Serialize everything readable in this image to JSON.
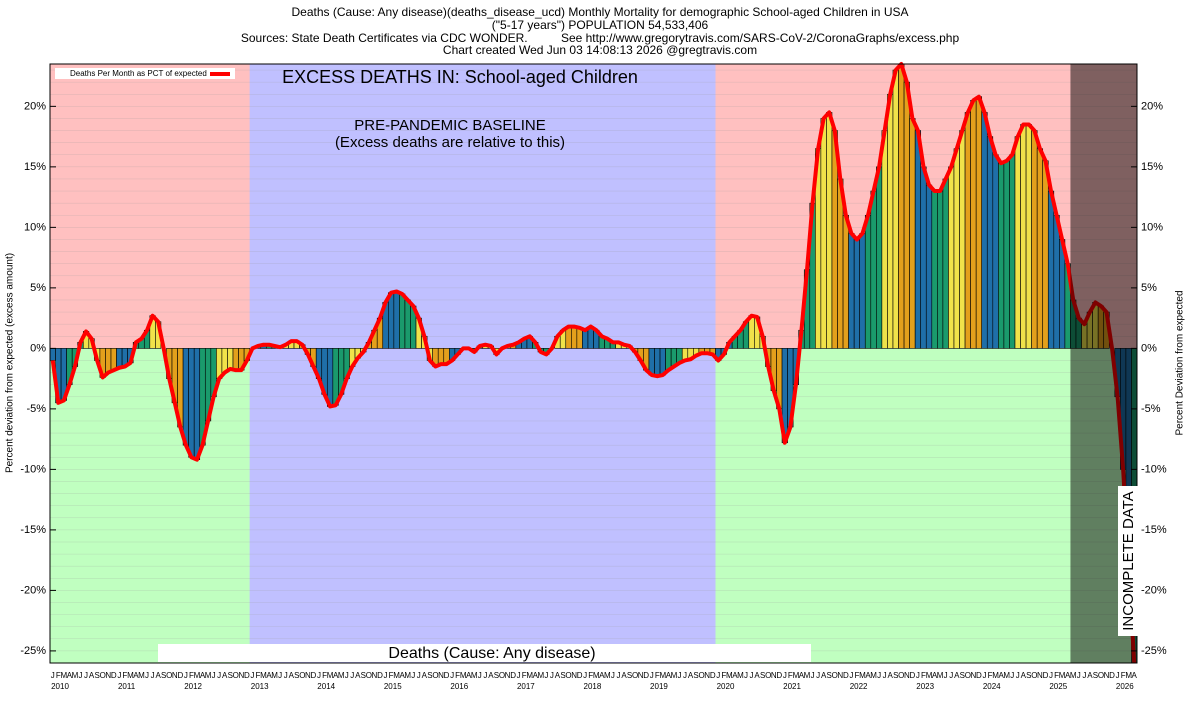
{
  "chart_data": {
    "type": "bar-line",
    "title_lines": [
      "Deaths (Cause: Any disease)(deaths_disease_ucd) Monthly Mortality for demographic School-aged Children in USA",
      "(\"5-17 years\") POPULATION 54,533,406",
      "Sources: State Death Certificates via CDC WONDER.          See http://www.gregorytravis.com/SARS-CoV-2/CoronaGraphs/excess.php",
      "Chart created Wed Jun 03 14:08:13 2026 @gregtravis.com"
    ],
    "ylabel": "Percent deviation from expected (excess amount)",
    "y2label": "Percent Deviation from expected",
    "annotations": [
      "EXCESS DEATHS IN: School-aged Children",
      "PRE-PANDEMIC BASELINE",
      "(Excess deaths are relative to this)",
      "Deaths (Cause: Any disease)",
      "INCOMPLETE DATA"
    ],
    "legend": "Deaths Per Month as PCT of expected",
    "line_color": "#ff0000",
    "month_colors": [
      "#1f6fa8",
      "#1f6fa8",
      "#1f6fa8",
      "#1a9a6c",
      "#1a9a6c",
      "#1a9a6c",
      "#f0e24a",
      "#f0e24a",
      "#f0e24a",
      "#e3a01c",
      "#e3a01c",
      "#e3a01c"
    ],
    "month_letters": [
      "J",
      "F",
      "M",
      "A",
      "M",
      "J",
      "J",
      "A",
      "S",
      "O",
      "N",
      "D"
    ],
    "years": [
      "2010",
      "2011",
      "2012",
      "2013",
      "2014",
      "2015",
      "2016",
      "2017",
      "2018",
      "2019",
      "2020",
      "2021",
      "2022",
      "2023",
      "2024",
      "2025",
      "2026"
    ],
    "baseline": [
      "2013-01",
      "2019-12"
    ],
    "incomplete_from": "2025-05",
    "ylim": [
      -26,
      23.5
    ],
    "yticks": [
      {
        "value": -25,
        "label": "-25%"
      },
      {
        "value": -20,
        "label": "-20%"
      },
      {
        "value": -15,
        "label": "-15%"
      },
      {
        "value": -10,
        "label": "-10%"
      },
      {
        "value": -5,
        "label": "-5%"
      },
      {
        "value": 0,
        "label": "0%"
      },
      {
        "value": 5,
        "label": "5%"
      },
      {
        "value": 10,
        "label": "10%"
      },
      {
        "value": 15,
        "label": "15%"
      },
      {
        "value": 20,
        "label": "20%"
      }
    ],
    "x": [
      "2010-01",
      "2010-02",
      "2010-03",
      "2010-04",
      "2010-05",
      "2010-06",
      "2010-07",
      "2010-08",
      "2010-09",
      "2010-10",
      "2010-11",
      "2010-12",
      "2011-01",
      "2011-02",
      "2011-03",
      "2011-04",
      "2011-05",
      "2011-06",
      "2011-07",
      "2011-08",
      "2011-09",
      "2011-10",
      "2011-11",
      "2011-12",
      "2012-01",
      "2012-02",
      "2012-03",
      "2012-04",
      "2012-05",
      "2012-06",
      "2012-07",
      "2012-08",
      "2012-09",
      "2012-10",
      "2012-11",
      "2012-12",
      "2013-01",
      "2013-02",
      "2013-03",
      "2013-04",
      "2013-05",
      "2013-06",
      "2013-07",
      "2013-08",
      "2013-09",
      "2013-10",
      "2013-11",
      "2013-12",
      "2014-01",
      "2014-02",
      "2014-03",
      "2014-04",
      "2014-05",
      "2014-06",
      "2014-07",
      "2014-08",
      "2014-09",
      "2014-10",
      "2014-11",
      "2014-12",
      "2015-01",
      "2015-02",
      "2015-03",
      "2015-04",
      "2015-05",
      "2015-06",
      "2015-07",
      "2015-08",
      "2015-09",
      "2015-10",
      "2015-11",
      "2015-12",
      "2016-01",
      "2016-02",
      "2016-03",
      "2016-04",
      "2016-05",
      "2016-06",
      "2016-07",
      "2016-08",
      "2016-09",
      "2016-10",
      "2016-11",
      "2016-12",
      "2017-01",
      "2017-02",
      "2017-03",
      "2017-04",
      "2017-05",
      "2017-06",
      "2017-07",
      "2017-08",
      "2017-09",
      "2017-10",
      "2017-11",
      "2017-12",
      "2018-01",
      "2018-02",
      "2018-03",
      "2018-04",
      "2018-05",
      "2018-06",
      "2018-07",
      "2018-08",
      "2018-09",
      "2018-10",
      "2018-11",
      "2018-12",
      "2019-01",
      "2019-02",
      "2019-03",
      "2019-04",
      "2019-05",
      "2019-06",
      "2019-07",
      "2019-08",
      "2019-09",
      "2019-10",
      "2019-11",
      "2019-12",
      "2020-01",
      "2020-02",
      "2020-03",
      "2020-04",
      "2020-05",
      "2020-06",
      "2020-07",
      "2020-08",
      "2020-09",
      "2020-10",
      "2020-11",
      "2020-12",
      "2021-01",
      "2021-02",
      "2021-03",
      "2021-04",
      "2021-05",
      "2021-06",
      "2021-07",
      "2021-08",
      "2021-09",
      "2021-10",
      "2021-11",
      "2021-12",
      "2022-01",
      "2022-02",
      "2022-03",
      "2022-04",
      "2022-05",
      "2022-06",
      "2022-07",
      "2022-08",
      "2022-09",
      "2022-10",
      "2022-11",
      "2022-12",
      "2023-01",
      "2023-02",
      "2023-03",
      "2023-04",
      "2023-05",
      "2023-06",
      "2023-07",
      "2023-08",
      "2023-09",
      "2023-10",
      "2023-11",
      "2023-12",
      "2024-01",
      "2024-02",
      "2024-03",
      "2024-04",
      "2024-05",
      "2024-06",
      "2024-07",
      "2024-08",
      "2024-09",
      "2024-10",
      "2024-11",
      "2024-12",
      "2025-01",
      "2025-02",
      "2025-03",
      "2025-04",
      "2025-05",
      "2025-06",
      "2025-07",
      "2025-08",
      "2025-09",
      "2025-10",
      "2025-11",
      "2025-12",
      "2026-01",
      "2026-02",
      "2026-03",
      "2026-04"
    ],
    "values": [
      -1,
      -4.5,
      -4.3,
      -3,
      -1.5,
      0.5,
      1.4,
      0.8,
      -1,
      -2.4,
      -2,
      -1.8,
      -1.6,
      -1.5,
      -1.2,
      0.5,
      0.8,
      1.5,
      2.7,
      2.2,
      0,
      -2.5,
      -4.5,
      -6.5,
      -8,
      -9,
      -9.2,
      -8,
      -6,
      -4,
      -2.5,
      -2,
      -1.7,
      -1.8,
      -1.8,
      -1,
      0,
      0.2,
      0.3,
      0.3,
      0.2,
      0.1,
      0.3,
      0.6,
      0.6,
      0.3,
      -0.5,
      -1.5,
      -2.5,
      -3.8,
      -4.8,
      -4.7,
      -3.8,
      -2.5,
      -1.5,
      -0.8,
      -0.3,
      0.5,
      1.5,
      2.5,
      3.8,
      4.6,
      4.7,
      4.5,
      4,
      3.5,
      2.5,
      1,
      -1,
      -1.5,
      -1.3,
      -1.3,
      -1,
      -0.5,
      0,
      0,
      -0.3,
      0.2,
      0.3,
      0.2,
      -0.5,
      0,
      0.2,
      0.3,
      0.5,
      0.8,
      1,
      0.5,
      -0.3,
      -0.5,
      0,
      1,
      1.5,
      1.8,
      1.8,
      1.7,
      1.5,
      1.8,
      1.5,
      1,
      0.8,
      0.5,
      0.5,
      0.3,
      0.2,
      -0.3,
      -1,
      -1.8,
      -2.2,
      -2.3,
      -2.2,
      -1.8,
      -1.5,
      -1.2,
      -1,
      -0.9,
      -0.6,
      -0.4,
      -0.4,
      -0.5,
      -1,
      -0.5,
      0.5,
      1,
      1.5,
      2.2,
      2.7,
      2.6,
      1,
      -1.5,
      -3.5,
      -5,
      -7.8,
      -6.5,
      -3,
      1.5,
      6.5,
      12,
      16.5,
      19,
      19.5,
      18,
      14,
      11,
      9.5,
      9,
      9.5,
      11,
      13,
      15,
      18,
      21,
      23,
      23.5,
      22,
      19,
      18,
      15,
      13.5,
      13,
      13,
      14,
      15,
      16.5,
      18,
      19.5,
      20.5,
      20.8,
      19.5,
      17.5,
      16,
      15.3,
      15.5,
      16,
      17.5,
      18.5,
      18.5,
      18,
      16.5,
      15.5,
      13,
      11,
      9,
      7,
      4,
      2.5,
      2,
      3,
      3.8,
      3.5,
      3,
      0,
      -4,
      -10,
      -18,
      -26
    ]
  }
}
